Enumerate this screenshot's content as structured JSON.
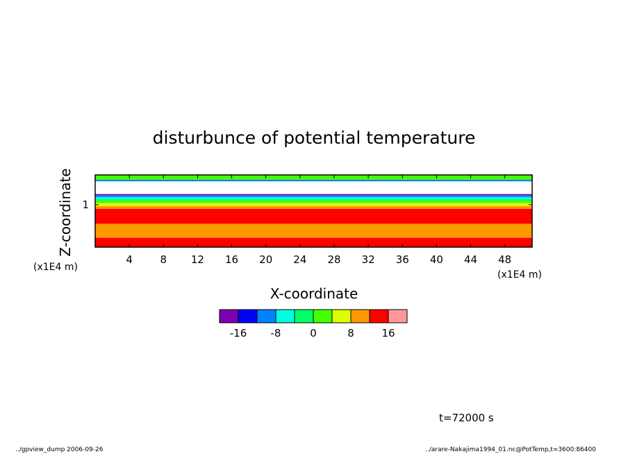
{
  "chart_data": {
    "type": "heatmap",
    "title": "disturbunce of potential temperature",
    "xlabel": "X-coordinate",
    "ylabel": "Z-coordinate",
    "x_unit": "(x1E4 m)",
    "y_unit": "(x1E4 m)",
    "xlim": [
      0,
      51.2
    ],
    "ylim": [
      0,
      1.7
    ],
    "x_ticks": [
      "4",
      "8",
      "12",
      "16",
      "20",
      "24",
      "28",
      "32",
      "36",
      "40",
      "44",
      "48"
    ],
    "y_ticks": [
      "1"
    ],
    "levels": [
      -20,
      -16,
      -12,
      -8,
      -4,
      0,
      4,
      8,
      12,
      16,
      20
    ],
    "colorbar_ticks": [
      "-16",
      "-8",
      "0",
      "8",
      "16"
    ],
    "colors": [
      "#7e00b0",
      "#0000ff",
      "#0082ff",
      "#00ffe0",
      "#00ff66",
      "#44ff00",
      "#ddff00",
      "#ff9900",
      "#ff0000",
      "#ff9999"
    ],
    "bands": [
      {
        "z0": 0.0,
        "z1": 0.22,
        "value": 14
      },
      {
        "z0": 0.22,
        "z1": 0.55,
        "value": 10
      },
      {
        "z0": 0.55,
        "z1": 0.9,
        "value": 14
      },
      {
        "z0": 0.9,
        "z1": 0.97,
        "value": 10
      },
      {
        "z0": 0.97,
        "z1": 1.04,
        "value": 6
      },
      {
        "z0": 1.04,
        "z1": 1.09,
        "value": 2
      },
      {
        "z0": 1.09,
        "z1": 1.13,
        "value": -2
      },
      {
        "z0": 1.13,
        "z1": 1.18,
        "value": -6
      },
      {
        "z0": 1.18,
        "z1": 1.22,
        "value": -10
      },
      {
        "z0": 1.22,
        "z1": 1.25,
        "value": -18
      },
      {
        "z0": 1.25,
        "z1": 1.55,
        "value": null
      },
      {
        "z0": 1.55,
        "z1": 1.59,
        "value": -10
      },
      {
        "z0": 1.59,
        "z1": 1.7,
        "value": 2
      }
    ]
  },
  "annotations": {
    "time": "t=72000 s",
    "footer_left": "../gpview_dump  2006-09-26",
    "footer_right": "../arare-Nakajima1994_01.nc@PotTemp,t=3600:86400"
  }
}
